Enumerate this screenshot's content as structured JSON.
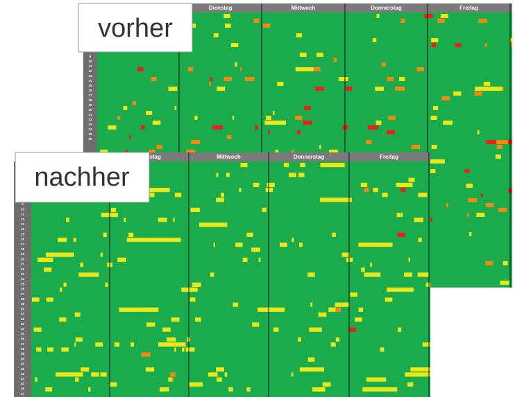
{
  "vorher": {
    "label": "vorher",
    "days": [
      "Dienstag",
      "Mittwoch",
      "Donnerstag",
      "Freitag"
    ],
    "rows": [
      9,
      10,
      11,
      12,
      13,
      14,
      15,
      16,
      17,
      18,
      19,
      20,
      21,
      22,
      23,
      24,
      25,
      26
    ]
  },
  "nachher": {
    "label": "nachher",
    "days": [
      "Dienstag",
      "Mittwoch",
      "Donnerstag",
      "Freitag"
    ],
    "rows": [
      9,
      10,
      11,
      12,
      13,
      14,
      15,
      16,
      17,
      18,
      19,
      20,
      21,
      22,
      23,
      24,
      25,
      26,
      27,
      28,
      29,
      30,
      31,
      32,
      33,
      34,
      35,
      36,
      37,
      38,
      39,
      40,
      41,
      42,
      43,
      44,
      45,
      46,
      47
    ]
  }
}
